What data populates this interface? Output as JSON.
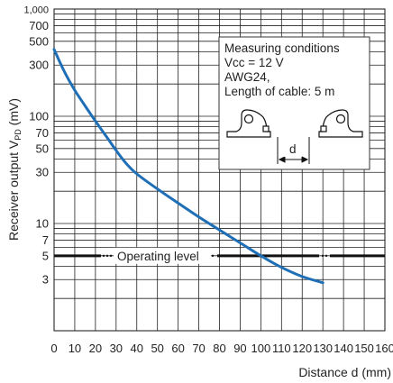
{
  "chart_data": {
    "type": "line",
    "title": "",
    "xlabel": "Distance d (mm)",
    "ylabel_main": "Receiver output  V",
    "ylabel_sub": "PD",
    "ylabel_unit": " (mV)",
    "xlim": [
      0,
      160
    ],
    "ylim": [
      1,
      1000
    ],
    "y_scale": "log",
    "grid": true,
    "x_ticks": [
      0,
      10,
      20,
      30,
      40,
      50,
      60,
      70,
      80,
      90,
      100,
      110,
      120,
      130,
      140,
      150,
      160
    ],
    "y_tick_labels": [
      {
        "value": 1000,
        "label": "1,000"
      },
      {
        "value": 700,
        "label": "700"
      },
      {
        "value": 500,
        "label": "500"
      },
      {
        "value": 300,
        "label": "300"
      },
      {
        "value": 100,
        "label": "100"
      },
      {
        "value": 70,
        "label": "70"
      },
      {
        "value": 50,
        "label": "50"
      },
      {
        "value": 30,
        "label": "30"
      },
      {
        "value": 10,
        "label": "10"
      },
      {
        "value": 7,
        "label": "7"
      },
      {
        "value": 5,
        "label": "5"
      },
      {
        "value": 3,
        "label": "3"
      }
    ],
    "y_grid_values": [
      1,
      2,
      3,
      4,
      5,
      6,
      7,
      8,
      9,
      10,
      20,
      30,
      40,
      50,
      60,
      70,
      80,
      90,
      100,
      200,
      300,
      400,
      500,
      600,
      700,
      800,
      900,
      1000
    ],
    "series": [
      {
        "color": "#1f6fb7",
        "x": [
          0,
          5,
          10,
          15,
          20,
          25,
          30,
          35,
          40,
          50,
          60,
          70,
          80,
          90,
          100,
          110,
          120,
          130
        ],
        "y": [
          420,
          260,
          175,
          125,
          90,
          66,
          48,
          36,
          29,
          21,
          15.5,
          11.5,
          8.7,
          6.6,
          5.0,
          3.9,
          3.2,
          2.8
        ]
      }
    ],
    "operating_level": {
      "value": 5,
      "label": "Operating level",
      "color": "#111111"
    },
    "annotation": {
      "lines": [
        "Measuring conditions",
        "Vcc = 12 V",
        "AWG24,",
        "Length of cable: 5 m"
      ],
      "d_label": "d"
    }
  }
}
